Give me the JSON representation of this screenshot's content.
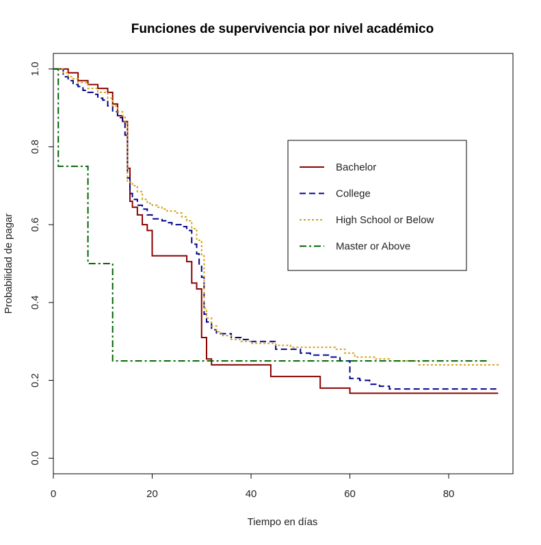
{
  "chart_data": {
    "type": "line",
    "step": true,
    "title": "Funciones de supervivencia por nivel académico",
    "xlabel": "Tiempo en días",
    "ylabel": "Probabilidad de pagar",
    "xlim": [
      0,
      93
    ],
    "ylim": [
      -0.04,
      1.04
    ],
    "xticks": [
      0,
      20,
      40,
      60,
      80
    ],
    "yticks": [
      0.0,
      0.2,
      0.4,
      0.6,
      0.8,
      1.0
    ],
    "xtick_labels": [
      "0",
      "20",
      "40",
      "60",
      "80"
    ],
    "ytick_labels": [
      "0.0",
      "0.2",
      "0.4",
      "0.6",
      "0.8",
      "1.0"
    ],
    "grid": false,
    "legend_position": "upper-right-inside",
    "series": [
      {
        "name": "Bachelor",
        "color": "#8B0000",
        "dash": "solid",
        "x": [
          0,
          3,
          5,
          7,
          9,
          11,
          12,
          13,
          14,
          15,
          15.5,
          16,
          17,
          18,
          19,
          20,
          27,
          28,
          29,
          30,
          31,
          32,
          44,
          54,
          60,
          90
        ],
        "y": [
          1.0,
          0.99,
          0.97,
          0.96,
          0.95,
          0.94,
          0.91,
          0.88,
          0.865,
          0.745,
          0.66,
          0.645,
          0.625,
          0.6,
          0.585,
          0.52,
          0.505,
          0.45,
          0.435,
          0.31,
          0.255,
          0.24,
          0.21,
          0.18,
          0.167,
          0.167
        ]
      },
      {
        "name": "College",
        "color": "#00008B",
        "dash": "dashed",
        "x": [
          0,
          2,
          3,
          4,
          5,
          6,
          7,
          8,
          9,
          10,
          11,
          12,
          13,
          14,
          14.5,
          15,
          15.5,
          16,
          17,
          18,
          19,
          20,
          22,
          23,
          24,
          26,
          27,
          28,
          29,
          29.5,
          30,
          30.5,
          31,
          32,
          33,
          36,
          38,
          40,
          45,
          50,
          52,
          56,
          58,
          60,
          62,
          64,
          66,
          68,
          90
        ],
        "y": [
          1.0,
          0.98,
          0.97,
          0.96,
          0.955,
          0.945,
          0.94,
          0.935,
          0.925,
          0.92,
          0.905,
          0.89,
          0.875,
          0.865,
          0.83,
          0.72,
          0.68,
          0.665,
          0.65,
          0.64,
          0.625,
          0.615,
          0.61,
          0.605,
          0.6,
          0.595,
          0.585,
          0.55,
          0.525,
          0.495,
          0.465,
          0.37,
          0.35,
          0.33,
          0.32,
          0.31,
          0.305,
          0.3,
          0.28,
          0.27,
          0.265,
          0.26,
          0.25,
          0.205,
          0.2,
          0.19,
          0.185,
          0.178,
          0.178
        ]
      },
      {
        "name": "High School or Below",
        "color": "#D4A017",
        "dash": "dotted",
        "x": [
          0,
          2,
          3,
          4,
          5,
          7,
          9,
          11,
          12,
          13,
          14,
          14.5,
          15,
          16,
          17,
          18,
          19,
          20,
          21,
          22,
          23,
          25,
          26,
          27,
          28,
          29,
          30,
          30.5,
          31,
          32,
          33,
          34,
          36,
          38,
          40,
          45,
          48,
          55,
          57,
          59,
          61,
          63,
          65,
          68,
          70,
          74,
          88,
          90
        ],
        "y": [
          1.0,
          0.99,
          0.98,
          0.975,
          0.965,
          0.95,
          0.94,
          0.925,
          0.905,
          0.89,
          0.88,
          0.86,
          0.71,
          0.7,
          0.685,
          0.665,
          0.655,
          0.65,
          0.645,
          0.64,
          0.635,
          0.63,
          0.62,
          0.61,
          0.59,
          0.56,
          0.52,
          0.385,
          0.36,
          0.34,
          0.325,
          0.315,
          0.305,
          0.3,
          0.295,
          0.29,
          0.285,
          0.285,
          0.28,
          0.27,
          0.26,
          0.26,
          0.255,
          0.25,
          0.25,
          0.24,
          0.24,
          0.235
        ]
      },
      {
        "name": "Master or Above",
        "color": "#006400",
        "dash": "dashdot",
        "x": [
          0,
          1,
          7,
          12,
          88
        ],
        "y": [
          1.0,
          0.75,
          0.5,
          0.25,
          0.25
        ]
      }
    ]
  }
}
